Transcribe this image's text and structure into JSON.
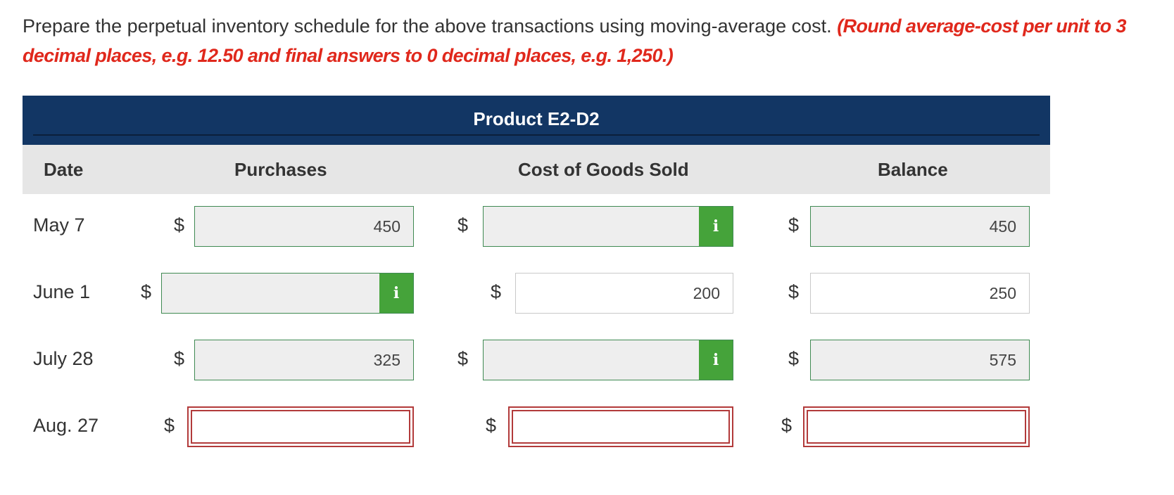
{
  "instructions": {
    "text": "Prepare the perpetual inventory schedule for the above transactions using moving-average cost.",
    "hint": "(Round average-cost per unit to 3 decimal places, e.g. 12.50 and final answers to 0 decimal places, e.g. 1,250.)"
  },
  "table": {
    "title": "Product E2-D2",
    "columns": {
      "date": "Date",
      "purchases": "Purchases",
      "cogs": "Cost of Goods Sold",
      "balance": "Balance"
    },
    "currency_symbol": "$",
    "info_icon_text": "i",
    "rows": [
      {
        "date": "May 7",
        "purchases": "450",
        "cogs": "",
        "balance": "450"
      },
      {
        "date": "June 1",
        "purchases": "",
        "cogs": "200",
        "balance": "250"
      },
      {
        "date": "July 28",
        "purchases": "325",
        "cogs": "",
        "balance": "575"
      },
      {
        "date": "Aug. 27",
        "purchases": "",
        "cogs": "",
        "balance": ""
      }
    ]
  },
  "colors": {
    "header_bg": "#123664",
    "info_icon": "#45a33a",
    "hint_text": "#e0281c",
    "error_border": "#b23a3a"
  }
}
